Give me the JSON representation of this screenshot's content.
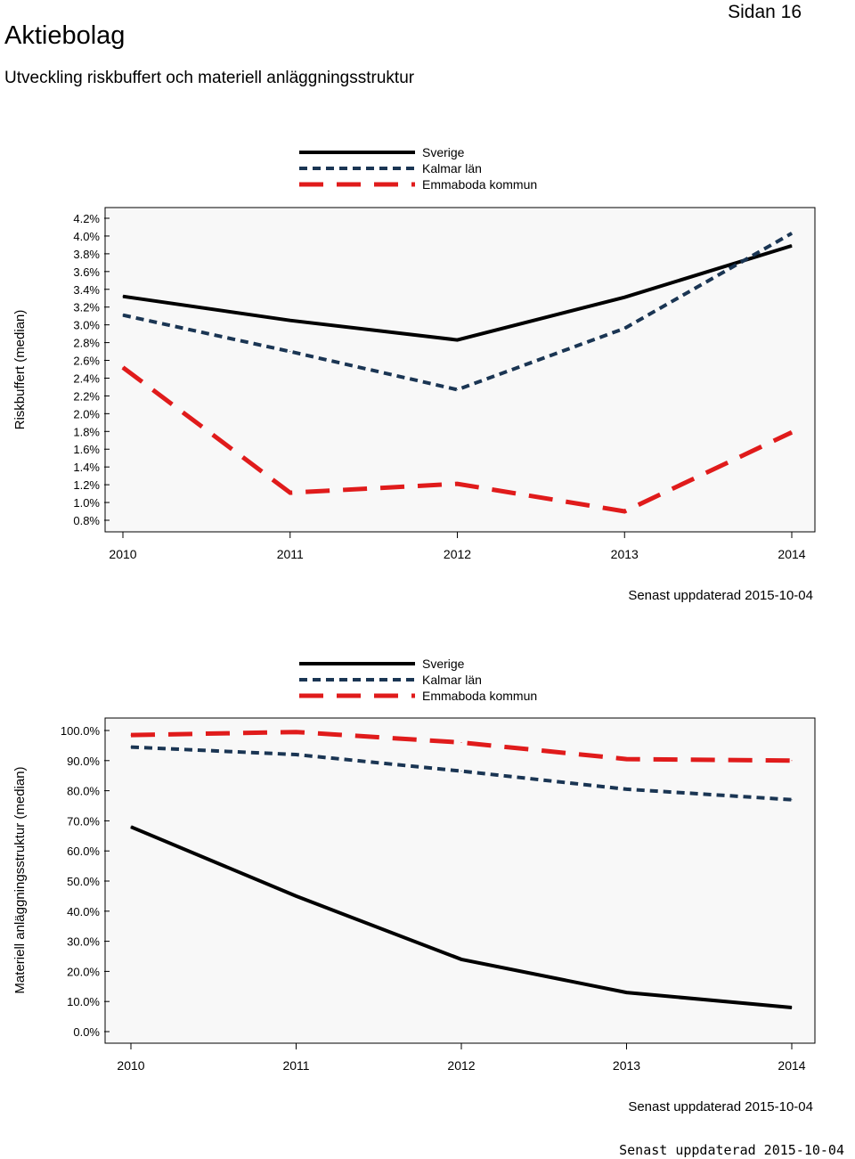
{
  "header": {
    "page_number": "Sidan 16",
    "title": "Aktiebolag",
    "subtitle": "Utveckling riskbuffert och materiell anläggningsstruktur"
  },
  "colors": {
    "sverige": "#000000",
    "kalmar": "#1a3553",
    "emmaboda": "#e01b1b",
    "plot_bg": "#f8f8f8"
  },
  "chart_data": [
    {
      "type": "line",
      "title": "",
      "xlabel": "",
      "ylabel": "Riskbuffert (median)",
      "x": [
        "2010",
        "2011",
        "2012",
        "2013",
        "2014"
      ],
      "ylim": [
        0.8,
        4.2
      ],
      "yticks": [
        0.8,
        1.0,
        1.2,
        1.4,
        1.6,
        1.8,
        2.0,
        2.2,
        2.4,
        2.6,
        2.8,
        3.0,
        3.2,
        3.4,
        3.6,
        3.8,
        4.0,
        4.2
      ],
      "ytick_labels": [
        "0.8%",
        "1.0%",
        "1.2%",
        "1.4%",
        "1.6%",
        "1.8%",
        "2.0%",
        "2.2%",
        "2.4%",
        "2.6%",
        "2.8%",
        "3.0%",
        "3.2%",
        "3.4%",
        "3.6%",
        "3.8%",
        "4.0%",
        "4.2%"
      ],
      "legend_position": "top-center",
      "series": [
        {
          "name": "Sverige",
          "style": "solid",
          "values": [
            3.32,
            3.05,
            2.83,
            3.31,
            3.89
          ]
        },
        {
          "name": "Kalmar län",
          "style": "dotted",
          "values": [
            3.11,
            2.7,
            2.27,
            2.96,
            4.03
          ]
        },
        {
          "name": "Emmaboda kommun",
          "style": "dashed",
          "values": [
            2.52,
            1.11,
            1.21,
            0.9,
            1.79
          ]
        }
      ],
      "note": "Senast uppdaterad 2015-10-04"
    },
    {
      "type": "line",
      "title": "",
      "xlabel": "",
      "ylabel": "Materiell anläggningsstruktur (median)",
      "x": [
        "2010",
        "2011",
        "2012",
        "2013",
        "2014"
      ],
      "ylim": [
        0,
        100
      ],
      "yticks": [
        0,
        10,
        20,
        30,
        40,
        50,
        60,
        70,
        80,
        90,
        100
      ],
      "ytick_labels": [
        "0.0%",
        "10.0%",
        "20.0%",
        "30.0%",
        "40.0%",
        "50.0%",
        "60.0%",
        "70.0%",
        "80.0%",
        "90.0%",
        "100.0%"
      ],
      "legend_position": "top-center",
      "series": [
        {
          "name": "Sverige",
          "style": "solid",
          "values": [
            68.0,
            45.0,
            24.0,
            13.0,
            8.0
          ]
        },
        {
          "name": "Kalmar län",
          "style": "dotted",
          "values": [
            94.5,
            92.0,
            86.5,
            80.5,
            77.0
          ]
        },
        {
          "name": "Emmaboda kommun",
          "style": "dashed",
          "values": [
            98.5,
            99.5,
            96.0,
            90.5,
            90.0
          ]
        }
      ],
      "note": "Senast uppdaterad 2015-10-04"
    }
  ],
  "footer": {
    "text": "Senast uppdaterad 2015-10-04"
  }
}
